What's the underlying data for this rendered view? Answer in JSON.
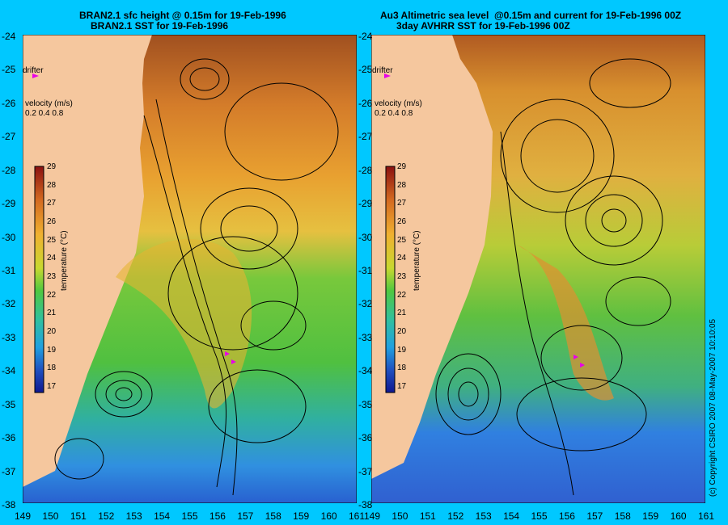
{
  "left_panel": {
    "title_line1": "BRAN2.1 sfc height @ 0.15m for 19-Feb-1996",
    "title_line2": "BRAN2.1 SST for 19-Feb-1996"
  },
  "right_panel": {
    "title_line1": "Au3 Altimetric sea level  @0.15m and current for 19-Feb-1996 00Z",
    "title_line2": "3day AVHRR SST for 19-Feb-1996 00Z"
  },
  "drifter_label": "drifter",
  "velocity_label": "velocity (m/s)",
  "velocity_scale": "0.2 0.4 0.8",
  "colorbar_label": "temperature (°C)",
  "colorbar_ticks": [
    "29",
    "28",
    "27",
    "26",
    "25",
    "24",
    "23",
    "22",
    "21",
    "20",
    "19",
    "18",
    "17"
  ],
  "lat_ticks": [
    "-24",
    "-25",
    "-26",
    "-27",
    "-28",
    "-29",
    "-30",
    "-31",
    "-32",
    "-33",
    "-34",
    "-35",
    "-36",
    "-37",
    "-38"
  ],
  "lon_ticks": [
    "149",
    "150",
    "151",
    "152",
    "153",
    "154",
    "155",
    "156",
    "157",
    "158",
    "159",
    "160",
    "161"
  ],
  "copyright": "(c) Copyright CSIRO 2007 08-May-2007 10:10:05",
  "colors": {
    "background": "#00c8ff",
    "land": "#f5c79e",
    "sst_warm": "#c86428",
    "sst_mid": "#e6b432",
    "sst_cool": "#50c83c",
    "sst_cold": "#2864dc"
  }
}
